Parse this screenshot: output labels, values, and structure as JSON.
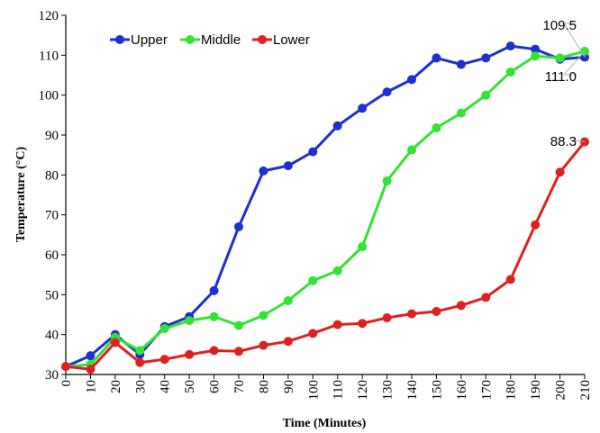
{
  "chart_data": {
    "type": "line",
    "xlabel": "Time (Minutes)",
    "ylabel": "Temperature (°C)",
    "xlim": [
      0,
      210
    ],
    "ylim": [
      30,
      120
    ],
    "x": [
      0,
      10,
      20,
      30,
      40,
      50,
      60,
      70,
      80,
      90,
      100,
      110,
      120,
      130,
      140,
      150,
      160,
      170,
      180,
      190,
      200,
      210
    ],
    "x_ticks": [
      0,
      10,
      20,
      30,
      40,
      50,
      60,
      70,
      80,
      90,
      100,
      110,
      120,
      130,
      140,
      150,
      160,
      170,
      180,
      190,
      200,
      210
    ],
    "y_ticks": [
      30,
      40,
      50,
      60,
      70,
      80,
      90,
      100,
      110,
      120
    ],
    "grid": false,
    "legend_position": "top-left",
    "series": [
      {
        "name": "Upper",
        "color": "#1f2fd0",
        "values": [
          32.0,
          34.7,
          40.0,
          35.0,
          42.0,
          44.5,
          51.0,
          67.0,
          81.0,
          82.3,
          85.8,
          92.3,
          96.7,
          100.8,
          103.9,
          109.3,
          107.7,
          109.3,
          112.3,
          111.5,
          109.0,
          109.5
        ]
      },
      {
        "name": "Middle",
        "color": "#33e233",
        "values": [
          32.0,
          32.5,
          39.3,
          36.0,
          41.5,
          43.5,
          44.5,
          42.3,
          44.8,
          48.5,
          53.5,
          56.0,
          62.0,
          78.5,
          86.3,
          91.8,
          95.5,
          100.0,
          105.8,
          109.8,
          109.3,
          111.0
        ]
      },
      {
        "name": "Lower",
        "color": "#e02020",
        "values": [
          32.0,
          31.3,
          38.0,
          33.0,
          33.8,
          35.0,
          36.0,
          35.8,
          37.3,
          38.3,
          40.3,
          42.5,
          42.8,
          44.2,
          45.2,
          45.8,
          47.3,
          49.3,
          53.8,
          67.5,
          80.7,
          88.3
        ]
      }
    ],
    "annotations": [
      {
        "text": "109.5",
        "series": "Upper",
        "x": 210
      },
      {
        "text": "111.0",
        "series": "Middle",
        "x": 210
      },
      {
        "text": "88.3",
        "series": "Lower",
        "x": 210
      }
    ]
  }
}
